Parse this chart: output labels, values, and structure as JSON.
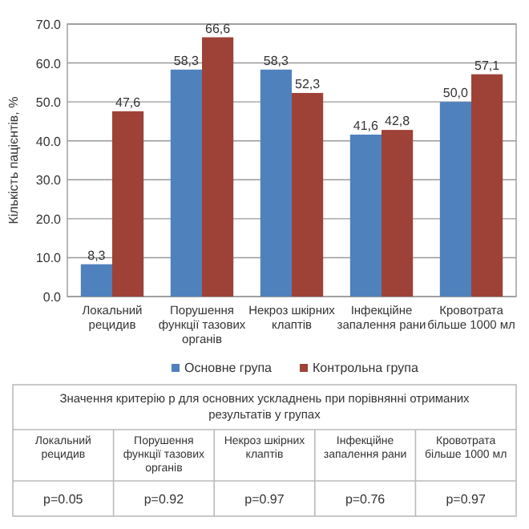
{
  "chart_data": {
    "type": "bar",
    "ylabel": "Кількість пацієнтів, %",
    "categories": [
      "Локальний рецидив",
      "Порушення функції тазових органів",
      "Некроз шкірних клаптів",
      "Інфекційне запалення рани",
      "Кровотрата більше 1000 мл"
    ],
    "series": [
      {
        "name": "Основне група",
        "color": "#4f81bd",
        "values": [
          8.3,
          58.3,
          58.3,
          41.6,
          50.0
        ],
        "value_labels": [
          "8,3",
          "58,3",
          "58,3",
          "41,6",
          "50,0"
        ]
      },
      {
        "name": "Контрольна група",
        "color": "#9e4238",
        "values": [
          47.6,
          66.6,
          52.3,
          42.8,
          57.1
        ],
        "value_labels": [
          "47,6",
          "66,6",
          "52,3",
          "42,8",
          "57,1"
        ]
      }
    ],
    "ylim": [
      0,
      70
    ],
    "yticks": [
      {
        "value": 0,
        "label": "0.0"
      },
      {
        "value": 10,
        "label": "10.0"
      },
      {
        "value": 20,
        "label": "20.0"
      },
      {
        "value": 30,
        "label": "30.0"
      },
      {
        "value": 40,
        "label": "40.0"
      },
      {
        "value": 50,
        "label": "50.0"
      },
      {
        "value": 60,
        "label": "60.0"
      },
      {
        "value": 70,
        "label": "70.0"
      }
    ],
    "grid": "y",
    "legend": "bottom",
    "annotations": [
      "Значення критерію p для основних ускладнень при порівнянні отриманих результатів у групах",
      "p=0.05",
      "p=0.92",
      "p=0.97",
      "p=0.76",
      "p=0.97"
    ]
  }
}
